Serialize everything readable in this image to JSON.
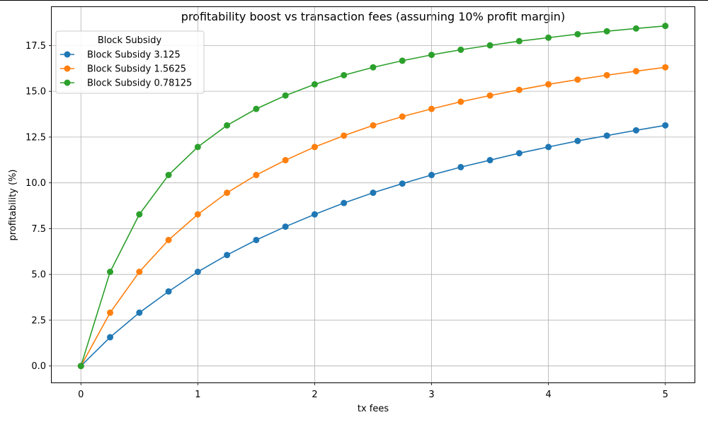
{
  "chart_data": {
    "type": "line",
    "title": "profitability boost vs transaction fees (assuming 10% profit margin)",
    "xlabel": "tx fees",
    "ylabel": "profitability (%)",
    "xlim": [
      -0.25,
      5.25
    ],
    "ylim": [
      -0.9,
      19.6
    ],
    "xticks": [
      0,
      1,
      2,
      3,
      4,
      5
    ],
    "xtick_labels": [
      "0",
      "1",
      "2",
      "3",
      "4",
      "5"
    ],
    "yticks": [
      0,
      2.5,
      5,
      7.5,
      10,
      12.5,
      15,
      17.5
    ],
    "ytick_labels": [
      "0.0",
      "2.5",
      "5.0",
      "7.5",
      "10.0",
      "12.5",
      "15.0",
      "17.5"
    ],
    "grid": true,
    "legend": {
      "title": "Block Subsidy",
      "position": "top-left"
    },
    "x": [
      0,
      0.25,
      0.5,
      0.75,
      1,
      1.25,
      1.5,
      1.75,
      2,
      2.25,
      2.5,
      2.75,
      3,
      3.25,
      3.5,
      3.75,
      4,
      4.25,
      4.5,
      4.75,
      5
    ],
    "series": [
      {
        "name": "Block Subsidy 3.125",
        "color": "#1f77b4",
        "values": [
          0,
          1.57,
          2.91,
          4.07,
          5.14,
          6.06,
          6.88,
          7.61,
          8.28,
          8.9,
          9.46,
          9.96,
          10.43,
          10.86,
          11.24,
          11.62,
          11.96,
          12.29,
          12.58,
          12.87,
          13.14
        ]
      },
      {
        "name": "Block Subsidy 1.5625",
        "color": "#ff7f0e",
        "values": [
          0,
          2.91,
          5.14,
          6.88,
          8.28,
          9.46,
          10.43,
          11.24,
          11.96,
          12.58,
          13.14,
          13.62,
          14.04,
          14.43,
          14.77,
          15.08,
          15.38,
          15.64,
          15.88,
          16.1,
          16.31
        ]
      },
      {
        "name": "Block Subsidy 0.78125",
        "color": "#2ca02c",
        "values": [
          0,
          5.14,
          8.28,
          10.43,
          11.96,
          13.14,
          14.04,
          14.77,
          15.38,
          15.88,
          16.31,
          16.67,
          16.99,
          17.27,
          17.51,
          17.74,
          17.93,
          18.12,
          18.28,
          18.43,
          18.57
        ]
      }
    ]
  }
}
